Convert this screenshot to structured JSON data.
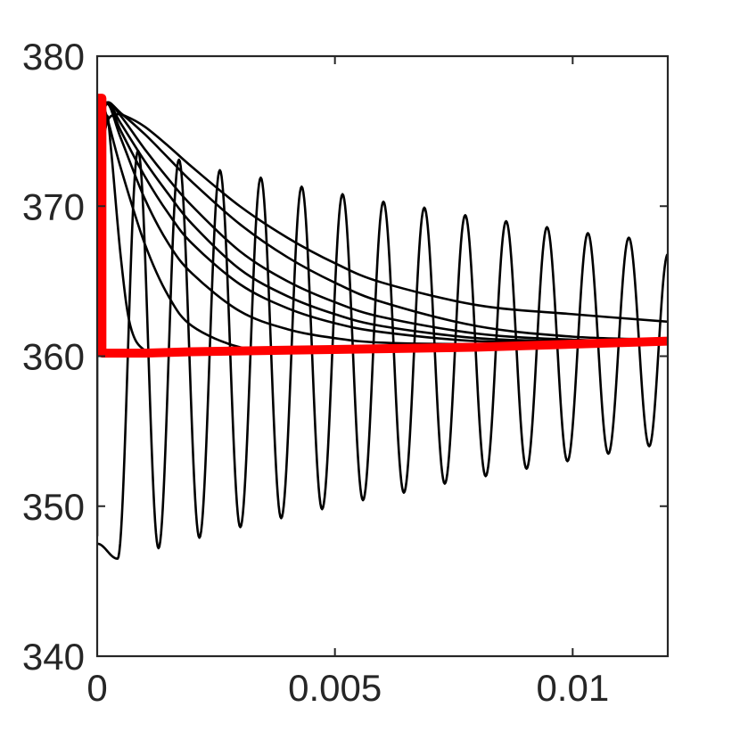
{
  "chart_data": {
    "type": "line",
    "title": "",
    "xlabel": "",
    "ylabel": "",
    "xlim": [
      0,
      0.012
    ],
    "ylim": [
      340,
      380
    ],
    "x_ticks": [
      0,
      0.005,
      0.01
    ],
    "x_tick_labels": [
      "0",
      "0.005",
      "0.01"
    ],
    "y_ticks": [
      340,
      350,
      360,
      370,
      380
    ],
    "y_tick_labels": [
      "340",
      "350",
      "360",
      "370",
      "380"
    ],
    "grid": false,
    "box": true,
    "colors": {
      "axes": "#262626",
      "trajectories": "#000000",
      "highlight": "#ff0000"
    },
    "series": [
      {
        "kind": "oscillatory-decay",
        "color": "#000000",
        "x": [
          0,
          0.00043,
          0.00086,
          0.00129,
          0.00172,
          0.00215,
          0.00258,
          0.00301,
          0.00344,
          0.00387,
          0.0043,
          0.00473,
          0.00516,
          0.00559,
          0.00602,
          0.00645,
          0.00688,
          0.00731,
          0.00774,
          0.00817,
          0.0086,
          0.00903,
          0.00946,
          0.00989,
          0.01032,
          0.01075,
          0.01118,
          0.01161,
          0.012
        ],
        "y": [
          347.5,
          346.5,
          373.7,
          347.2,
          373.1,
          347.9,
          372.4,
          348.6,
          371.9,
          349.2,
          371.3,
          349.8,
          370.8,
          350.4,
          370.3,
          350.9,
          369.9,
          351.5,
          369.4,
          352.0,
          369.0,
          352.5,
          368.6,
          353.0,
          368.2,
          353.5,
          367.9,
          354.0,
          366.8
        ]
      },
      {
        "kind": "monotone-decay",
        "color": "#000000",
        "x": [
          0,
          0.0001,
          0.0002,
          0.0003,
          0.0005,
          0.0007,
          0.001,
          0.0015,
          0.002,
          0.003,
          0.005,
          0.008,
          0.012
        ],
        "y": [
          363.5,
          372.0,
          376.0,
          373.5,
          366.5,
          362.0,
          360.4,
          360.3,
          360.4,
          360.5,
          360.6,
          360.8,
          361.0
        ]
      },
      {
        "kind": "monotone-decay",
        "color": "#000000",
        "x": [
          0,
          0.0001,
          0.0002,
          0.0005,
          0.001,
          0.0015,
          0.002,
          0.003,
          0.004,
          0.006,
          0.008,
          0.01,
          0.012
        ],
        "y": [
          372.0,
          376.5,
          376.0,
          372.5,
          367.5,
          364.0,
          362.0,
          360.6,
          360.4,
          360.5,
          360.7,
          360.8,
          361.0
        ]
      },
      {
        "kind": "monotone-decay",
        "color": "#000000",
        "x": [
          0,
          0.0002,
          0.0005,
          0.001,
          0.0015,
          0.002,
          0.003,
          0.004,
          0.005,
          0.006,
          0.008,
          0.01,
          0.012
        ],
        "y": [
          373.5,
          376.8,
          374.5,
          370.5,
          367.5,
          365.5,
          363.0,
          361.8,
          361.2,
          360.9,
          360.8,
          360.9,
          361.0
        ]
      },
      {
        "kind": "monotone-decay",
        "color": "#000000",
        "x": [
          0,
          0.0002,
          0.0005,
          0.001,
          0.0015,
          0.002,
          0.003,
          0.004,
          0.005,
          0.006,
          0.008,
          0.01,
          0.012
        ],
        "y": [
          374.0,
          376.9,
          375.0,
          372.0,
          369.5,
          367.5,
          364.8,
          363.2,
          362.2,
          361.6,
          361.0,
          361.0,
          361.0
        ]
      },
      {
        "kind": "monotone-decay",
        "color": "#000000",
        "x": [
          0,
          0.0002,
          0.0005,
          0.001,
          0.0015,
          0.002,
          0.003,
          0.004,
          0.005,
          0.006,
          0.008,
          0.01,
          0.012
        ],
        "y": [
          374.5,
          376.9,
          375.5,
          373.0,
          370.8,
          368.8,
          365.8,
          364.0,
          362.8,
          362.0,
          361.2,
          361.0,
          361.0
        ]
      },
      {
        "kind": "monotone-decay",
        "color": "#000000",
        "x": [
          0,
          0.0002,
          0.0005,
          0.001,
          0.0015,
          0.002,
          0.003,
          0.004,
          0.005,
          0.006,
          0.008,
          0.01,
          0.012
        ],
        "y": [
          375.0,
          376.9,
          376.0,
          373.8,
          371.8,
          370.0,
          367.0,
          365.0,
          363.6,
          362.6,
          361.5,
          361.1,
          361.0
        ]
      },
      {
        "kind": "monotone-decay",
        "color": "#000000",
        "x": [
          0,
          0.0002,
          0.0005,
          0.001,
          0.0015,
          0.002,
          0.003,
          0.004,
          0.005,
          0.006,
          0.008,
          0.01,
          0.012
        ],
        "y": [
          375.5,
          376.9,
          376.2,
          374.8,
          373.2,
          371.6,
          368.8,
          366.6,
          364.9,
          363.6,
          362.0,
          361.3,
          361.1
        ]
      },
      {
        "kind": "monotone-decay",
        "color": "#000000",
        "x": [
          0,
          0.0002,
          0.0004,
          0.0006,
          0.001,
          0.0015,
          0.002,
          0.003,
          0.004,
          0.005,
          0.006,
          0.008,
          0.01,
          0.012
        ],
        "y": [
          372.0,
          375.5,
          376.1,
          376.0,
          375.3,
          374.0,
          372.6,
          370.0,
          367.9,
          366.2,
          364.9,
          363.4,
          362.8,
          362.3
        ]
      },
      {
        "kind": "spike",
        "color": "#000000",
        "x": [
          0,
          0,
          0
        ],
        "y": [
          348.0,
          376.8,
          374.0
        ]
      },
      {
        "kind": "highlight-band",
        "color": "#ff0000",
        "x": [
          0,
          0,
          0.0001,
          0.0001,
          0.0005,
          0.001,
          0.002,
          0.004,
          0.006,
          0.008,
          0.01,
          0.012
        ],
        "y": [
          360.0,
          377.2,
          377.2,
          360.2,
          360.2,
          360.2,
          360.3,
          360.4,
          360.5,
          360.6,
          360.8,
          361.0
        ]
      }
    ]
  }
}
